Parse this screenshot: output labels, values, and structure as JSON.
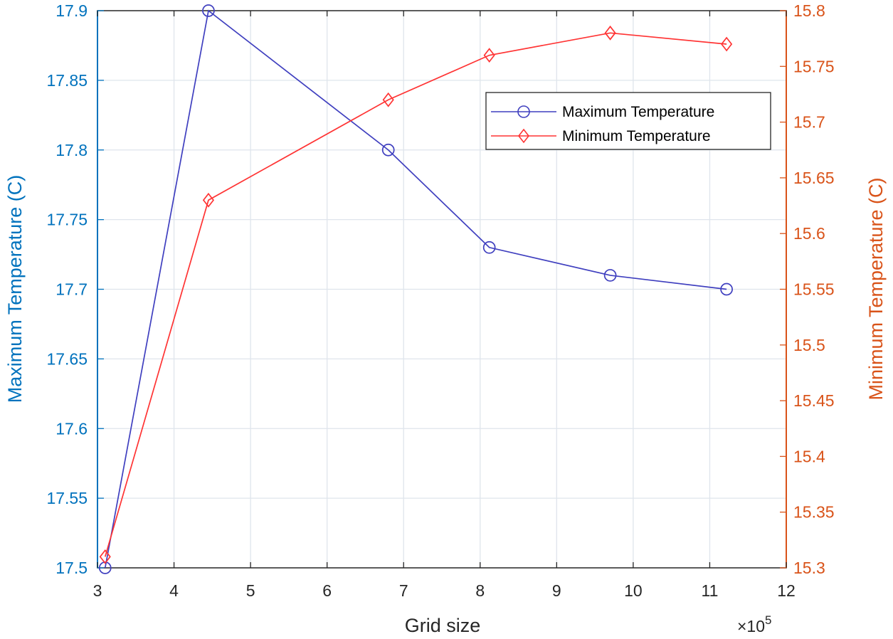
{
  "chart_data": {
    "type": "line",
    "xlabel": "Grid size",
    "x_exponent_label": "×10",
    "x_exponent_power": "5",
    "ylabel_left": "Maximum Temperature (C)",
    "ylabel_right": "Minimum Temperature (C)",
    "xlim": [
      3,
      12
    ],
    "ylim_left": [
      17.5,
      17.9
    ],
    "ylim_right": [
      15.3,
      15.8
    ],
    "x_ticks": [
      3,
      4,
      5,
      6,
      7,
      8,
      9,
      10,
      11,
      12
    ],
    "x_tick_labels": [
      "3",
      "4",
      "5",
      "6",
      "7",
      "8",
      "9",
      "10",
      "11",
      "12"
    ],
    "y_left_ticks": [
      17.5,
      17.55,
      17.6,
      17.65,
      17.7,
      17.75,
      17.8,
      17.85,
      17.9
    ],
    "y_left_tick_labels": [
      "17.5",
      "17.55",
      "17.6",
      "17.65",
      "17.7",
      "17.75",
      "17.8",
      "17.85",
      "17.9"
    ],
    "y_right_ticks": [
      15.3,
      15.35,
      15.4,
      15.45,
      15.5,
      15.55,
      15.6,
      15.65,
      15.7,
      15.75,
      15.8
    ],
    "y_right_tick_labels": [
      "15.3",
      "15.35",
      "15.4",
      "15.45",
      "15.5",
      "15.55",
      "15.6",
      "15.65",
      "15.7",
      "15.75",
      "15.8"
    ],
    "grid": true,
    "legend_position": "top-right",
    "series": [
      {
        "name": "Maximum Temperature",
        "axis": "left",
        "marker": "circle",
        "color": "#3F3FBF",
        "x": [
          3.1,
          4.45,
          6.8,
          8.12,
          9.7,
          11.22
        ],
        "y": [
          17.5,
          17.9,
          17.8,
          17.73,
          17.71,
          17.7
        ]
      },
      {
        "name": "Minimum Temperature",
        "axis": "right",
        "marker": "diamond",
        "color": "#FF3333",
        "x": [
          3.1,
          4.45,
          6.8,
          8.12,
          9.7,
          11.22
        ],
        "y": [
          15.31,
          15.63,
          15.72,
          15.76,
          15.78,
          15.77
        ]
      }
    ]
  },
  "colors": {
    "left_axis": "#0072BD",
    "right_axis": "#D95319",
    "grid": "#DFE5EC",
    "frame": "#262626"
  }
}
